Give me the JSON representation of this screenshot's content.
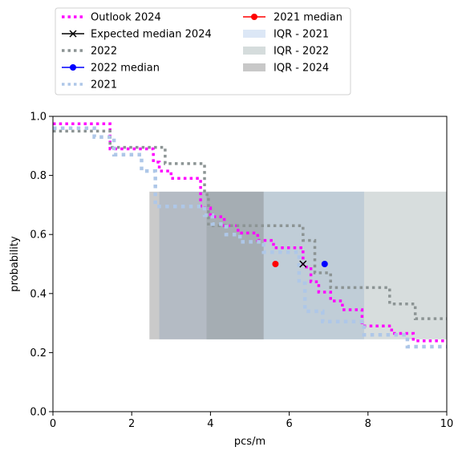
{
  "chart_data": {
    "type": "line",
    "title": "",
    "xlabel": "pcs/m",
    "ylabel": "probability",
    "xlim": [
      0,
      10
    ],
    "ylim": [
      0,
      1
    ],
    "xticks": [
      "0",
      "2",
      "4",
      "6",
      "8",
      "10"
    ],
    "yticks": [
      "0.0",
      "0.2",
      "0.4",
      "0.6",
      "0.8",
      "1.0"
    ],
    "grid": false,
    "legend_placement": "top-left, above plot, two columns",
    "bands": [
      {
        "name": "IQR - 2021",
        "x0": 2.7,
        "x1": 7.9,
        "y0": 0.245,
        "y1": 0.745,
        "color": "#aec7e8",
        "opacity": 0.45
      },
      {
        "name": "IQR - 2022",
        "x0": 3.9,
        "x1": 10.0,
        "y0": 0.245,
        "y1": 0.745,
        "color": "#95a5a6",
        "opacity": 0.38
      },
      {
        "name": "IQR - 2024",
        "x0": 2.45,
        "x1": 5.35,
        "y0": 0.245,
        "y1": 0.745,
        "color": "#808080",
        "opacity": 0.42
      }
    ],
    "series": [
      {
        "name": "Outlook 2024",
        "color": "#ff00ff",
        "style": "dotted",
        "width": 3.5,
        "x": [
          0,
          1.45,
          1.45,
          2.55,
          2.55,
          2.7,
          2.7,
          3.0,
          3.0,
          3.75,
          3.75,
          4.0,
          4.0,
          4.35,
          4.35,
          4.7,
          4.7,
          5.2,
          5.2,
          5.6,
          5.6,
          6.35,
          6.35,
          6.55,
          6.55,
          6.75,
          6.75,
          7.05,
          7.05,
          7.35,
          7.35,
          7.85,
          7.85,
          8.6,
          8.6,
          9.15,
          9.15,
          10
        ],
        "y": [
          0.975,
          0.975,
          0.89,
          0.89,
          0.845,
          0.845,
          0.815,
          0.815,
          0.79,
          0.79,
          0.69,
          0.69,
          0.66,
          0.66,
          0.63,
          0.63,
          0.605,
          0.605,
          0.58,
          0.58,
          0.555,
          0.555,
          0.49,
          0.49,
          0.44,
          0.44,
          0.405,
          0.405,
          0.375,
          0.375,
          0.345,
          0.345,
          0.29,
          0.29,
          0.265,
          0.265,
          0.24,
          0.24
        ]
      },
      {
        "name": "Expected median 2024",
        "color": "#000000",
        "style": "solid-x",
        "width": 1.5,
        "x": [
          6.35
        ],
        "y": [
          0.5
        ]
      },
      {
        "name": "2022",
        "color": "#8c9494",
        "style": "dotted",
        "width": 3.5,
        "x": [
          0,
          1.45,
          1.45,
          2.85,
          2.85,
          3.85,
          3.85,
          3.95,
          3.95,
          6.35,
          6.35,
          6.65,
          6.65,
          7.05,
          7.05,
          8.55,
          8.55,
          9.2,
          9.2,
          10
        ],
        "y": [
          0.95,
          0.95,
          0.895,
          0.895,
          0.84,
          0.84,
          0.735,
          0.735,
          0.63,
          0.63,
          0.58,
          0.58,
          0.47,
          0.47,
          0.42,
          0.42,
          0.365,
          0.365,
          0.315,
          0.315
        ]
      },
      {
        "name": "2022 median",
        "color": "#0000ff",
        "style": "solid-o",
        "width": 1.5,
        "x": [
          6.9
        ],
        "y": [
          0.5
        ]
      },
      {
        "name": "2021",
        "color": "#aec7e8",
        "style": "dotted",
        "width": 4.5,
        "x": [
          0,
          1.05,
          1.05,
          1.55,
          1.55,
          2.25,
          2.25,
          2.6,
          2.6,
          3.85,
          3.85,
          4.05,
          4.05,
          4.4,
          4.4,
          4.75,
          4.75,
          5.35,
          5.35,
          6.25,
          6.25,
          6.4,
          6.4,
          6.85,
          6.85,
          7.9,
          7.9,
          9.0,
          9.0,
          10
        ],
        "y": [
          0.96,
          0.96,
          0.93,
          0.93,
          0.87,
          0.87,
          0.815,
          0.815,
          0.695,
          0.695,
          0.665,
          0.665,
          0.635,
          0.635,
          0.6,
          0.6,
          0.575,
          0.575,
          0.54,
          0.54,
          0.435,
          0.435,
          0.34,
          0.34,
          0.305,
          0.305,
          0.26,
          0.26,
          0.22,
          0.22
        ]
      },
      {
        "name": "2021 median",
        "color": "#ff0000",
        "style": "solid-o",
        "width": 1.5,
        "x": [
          5.65
        ],
        "y": [
          0.5
        ]
      }
    ],
    "legend": [
      {
        "label": "Outlook 2024",
        "kind": "line",
        "color": "#ff00ff",
        "style": "dotted"
      },
      {
        "label": "Expected median 2024",
        "kind": "line",
        "color": "#000000",
        "style": "solid-x"
      },
      {
        "label": "2022",
        "kind": "line",
        "color": "#8c9494",
        "style": "dotted"
      },
      {
        "label": "2022 median",
        "kind": "line",
        "color": "#0000ff",
        "style": "solid-o"
      },
      {
        "label": "2021",
        "kind": "line",
        "color": "#aec7e8",
        "style": "dotted"
      },
      {
        "label": "2021 median",
        "kind": "line",
        "color": "#ff0000",
        "style": "solid-o"
      },
      {
        "label": "IQR - 2021",
        "kind": "patch",
        "color": "#dce7f6"
      },
      {
        "label": "IQR - 2022",
        "kind": "patch",
        "color": "#d5dcdc"
      },
      {
        "label": "IQR - 2024",
        "kind": "patch",
        "color": "#c8c8c8"
      }
    ]
  }
}
